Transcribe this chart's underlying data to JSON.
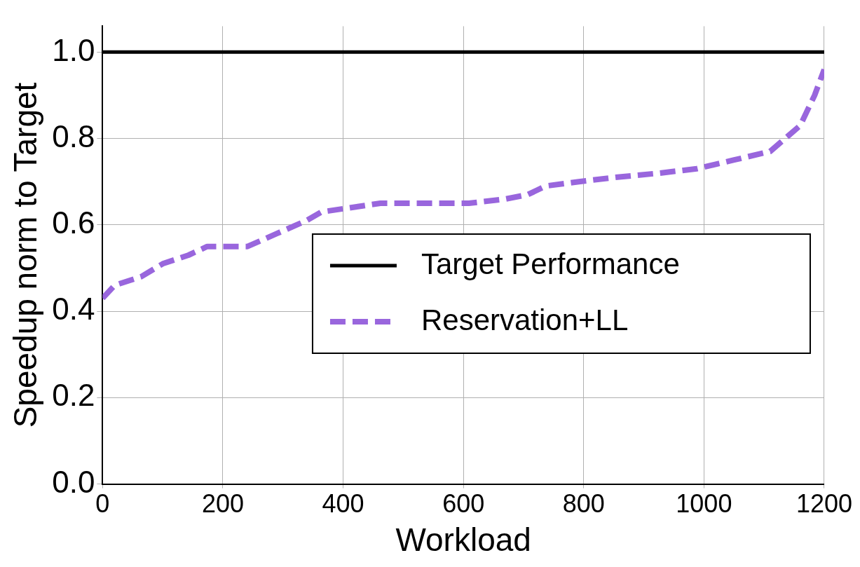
{
  "chart_data": {
    "type": "line",
    "xlabel": "Workload",
    "ylabel": "Speedup norm to Target",
    "xlim": [
      0,
      1200
    ],
    "xticks": [
      0,
      200,
      400,
      600,
      800,
      1000,
      1200
    ],
    "ylim": [
      0,
      1.06
    ],
    "yticks": [
      {
        "value": 0,
        "label": "0.0"
      },
      {
        "value": 0.2,
        "label": "0.2"
      },
      {
        "value": 0.4,
        "label": "0.4"
      },
      {
        "value": 0.6,
        "label": "0.6"
      },
      {
        "value": 0.8,
        "label": "0.8"
      },
      {
        "value": 1,
        "label": "1.0"
      }
    ],
    "grid": true,
    "legend": "right",
    "marker": "none",
    "series": [
      {
        "name": "Target Performance",
        "color": "#000000",
        "line_style": "solid",
        "x": [
          0,
          1200
        ],
        "values": [
          1,
          1
        ]
      },
      {
        "name": "Reservation+LL",
        "color": "#9966dd",
        "line_style": "dashed",
        "x": [
          0,
          20,
          64,
          100,
          143,
          174,
          241,
          290,
          339,
          364,
          413,
          462,
          535,
          609,
          670,
          707,
          737,
          792,
          853,
          927,
          988,
          1049,
          1110,
          1135,
          1160,
          1184,
          1200
        ],
        "values": [
          0.43,
          0.46,
          0.48,
          0.51,
          0.53,
          0.55,
          0.55,
          0.58,
          0.61,
          0.63,
          0.64,
          0.65,
          0.65,
          0.65,
          0.66,
          0.67,
          0.69,
          0.7,
          0.71,
          0.72,
          0.73,
          0.75,
          0.77,
          0.8,
          0.83,
          0.9,
          0.96
        ]
      }
    ]
  }
}
